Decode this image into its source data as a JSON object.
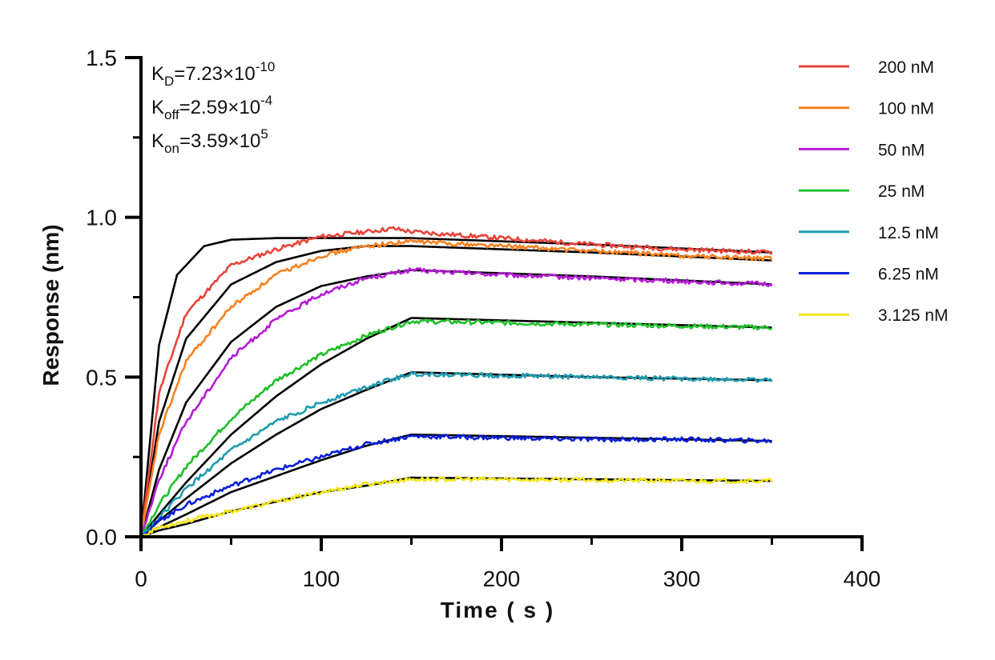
{
  "chart_data": {
    "type": "line",
    "xlabel": "Time ( s )",
    "ylabel": "Response (nm)",
    "xlim": [
      0,
      400
    ],
    "ylim": [
      0,
      1.5
    ],
    "x_ticks": [
      "0",
      "100",
      "200",
      "300",
      "400"
    ],
    "y_ticks": [
      "0.0",
      "0.5",
      "1.0",
      "1.5"
    ],
    "grid": false,
    "legend_position": "top-right",
    "annotations": [
      {
        "name": "K",
        "sub": "D",
        "value": "=7.23×10",
        "sup": "-10"
      },
      {
        "name": "K",
        "sub": "off",
        "value": "=2.59×10",
        "sup": "-4"
      },
      {
        "name": "K",
        "sub": "on",
        "value": "=3.59×10",
        "sup": "5"
      }
    ],
    "association_end_s": 150,
    "experiment_end_s": 350,
    "fit_line_color": "#000000",
    "series": [
      {
        "name": "200 nM",
        "color": "#E8433A",
        "measured": [
          [
            0,
            0
          ],
          [
            10,
            0.45
          ],
          [
            25,
            0.7
          ],
          [
            50,
            0.85
          ],
          [
            75,
            0.9
          ],
          [
            100,
            0.94
          ],
          [
            125,
            0.955
          ],
          [
            140,
            0.965
          ],
          [
            150,
            0.955
          ],
          [
            200,
            0.935
          ],
          [
            250,
            0.915
          ],
          [
            300,
            0.9
          ],
          [
            350,
            0.89
          ]
        ],
        "fit": [
          [
            0,
            0
          ],
          [
            10,
            0.6
          ],
          [
            20,
            0.82
          ],
          [
            35,
            0.91
          ],
          [
            50,
            0.93
          ],
          [
            75,
            0.935
          ],
          [
            150,
            0.935
          ],
          [
            250,
            0.915
          ],
          [
            350,
            0.89
          ]
        ]
      },
      {
        "name": "100 nM",
        "color": "#F58220",
        "measured": [
          [
            0,
            0
          ],
          [
            10,
            0.32
          ],
          [
            25,
            0.55
          ],
          [
            50,
            0.72
          ],
          [
            75,
            0.82
          ],
          [
            100,
            0.88
          ],
          [
            125,
            0.91
          ],
          [
            150,
            0.925
          ],
          [
            200,
            0.91
          ],
          [
            250,
            0.895
          ],
          [
            300,
            0.88
          ],
          [
            350,
            0.87
          ]
        ],
        "fit": [
          [
            0,
            0
          ],
          [
            10,
            0.36
          ],
          [
            25,
            0.62
          ],
          [
            50,
            0.79
          ],
          [
            75,
            0.86
          ],
          [
            100,
            0.895
          ],
          [
            125,
            0.91
          ],
          [
            150,
            0.91
          ],
          [
            250,
            0.89
          ],
          [
            350,
            0.865
          ]
        ]
      },
      {
        "name": "50 nM",
        "color": "#B51CD6",
        "measured": [
          [
            0,
            0
          ],
          [
            10,
            0.18
          ],
          [
            25,
            0.36
          ],
          [
            50,
            0.56
          ],
          [
            75,
            0.68
          ],
          [
            100,
            0.76
          ],
          [
            125,
            0.81
          ],
          [
            150,
            0.835
          ],
          [
            200,
            0.82
          ],
          [
            250,
            0.81
          ],
          [
            300,
            0.8
          ],
          [
            350,
            0.79
          ]
        ],
        "fit": [
          [
            0,
            0
          ],
          [
            10,
            0.21
          ],
          [
            25,
            0.42
          ],
          [
            50,
            0.61
          ],
          [
            75,
            0.72
          ],
          [
            100,
            0.785
          ],
          [
            125,
            0.815
          ],
          [
            150,
            0.835
          ],
          [
            250,
            0.815
          ],
          [
            350,
            0.79
          ]
        ]
      },
      {
        "name": "25 nM",
        "color": "#1FBF2A",
        "measured": [
          [
            0,
            0
          ],
          [
            10,
            0.1
          ],
          [
            25,
            0.22
          ],
          [
            50,
            0.37
          ],
          [
            75,
            0.49
          ],
          [
            100,
            0.57
          ],
          [
            125,
            0.63
          ],
          [
            150,
            0.675
          ],
          [
            200,
            0.67
          ],
          [
            250,
            0.665
          ],
          [
            300,
            0.66
          ],
          [
            350,
            0.655
          ]
        ],
        "fit": [
          [
            0,
            0
          ],
          [
            10,
            0.07
          ],
          [
            25,
            0.17
          ],
          [
            50,
            0.32
          ],
          [
            75,
            0.44
          ],
          [
            100,
            0.54
          ],
          [
            125,
            0.62
          ],
          [
            150,
            0.685
          ],
          [
            250,
            0.67
          ],
          [
            350,
            0.655
          ]
        ]
      },
      {
        "name": "12.5 nM",
        "color": "#1E9BAF",
        "measured": [
          [
            0,
            0
          ],
          [
            10,
            0.06
          ],
          [
            25,
            0.15
          ],
          [
            50,
            0.27
          ],
          [
            75,
            0.36
          ],
          [
            100,
            0.42
          ],
          [
            125,
            0.47
          ],
          [
            150,
            0.51
          ],
          [
            200,
            0.505
          ],
          [
            250,
            0.5
          ],
          [
            300,
            0.495
          ],
          [
            350,
            0.49
          ]
        ],
        "fit": [
          [
            0,
            0
          ],
          [
            10,
            0.05
          ],
          [
            25,
            0.12
          ],
          [
            50,
            0.23
          ],
          [
            75,
            0.32
          ],
          [
            100,
            0.4
          ],
          [
            125,
            0.46
          ],
          [
            150,
            0.515
          ],
          [
            250,
            0.5
          ],
          [
            350,
            0.49
          ]
        ]
      },
      {
        "name": "6.25 nM",
        "color": "#0A1FD8",
        "measured": [
          [
            0,
            0
          ],
          [
            10,
            0.05
          ],
          [
            25,
            0.1
          ],
          [
            50,
            0.16
          ],
          [
            75,
            0.21
          ],
          [
            100,
            0.25
          ],
          [
            125,
            0.29
          ],
          [
            150,
            0.315
          ],
          [
            200,
            0.31
          ],
          [
            250,
            0.305
          ],
          [
            300,
            0.305
          ],
          [
            350,
            0.3
          ]
        ],
        "fit": [
          [
            0,
            0
          ],
          [
            10,
            0.03
          ],
          [
            25,
            0.07
          ],
          [
            50,
            0.14
          ],
          [
            75,
            0.19
          ],
          [
            100,
            0.24
          ],
          [
            125,
            0.285
          ],
          [
            150,
            0.32
          ],
          [
            250,
            0.31
          ],
          [
            350,
            0.3
          ]
        ]
      },
      {
        "name": "3.125 nM",
        "color": "#F2E61B",
        "measured": [
          [
            0,
            0
          ],
          [
            10,
            0.03
          ],
          [
            25,
            0.05
          ],
          [
            50,
            0.08
          ],
          [
            75,
            0.11
          ],
          [
            100,
            0.14
          ],
          [
            125,
            0.165
          ],
          [
            150,
            0.18
          ],
          [
            200,
            0.18
          ],
          [
            250,
            0.178
          ],
          [
            300,
            0.175
          ],
          [
            350,
            0.175
          ]
        ],
        "fit": [
          [
            0,
            0
          ],
          [
            10,
            0.02
          ],
          [
            25,
            0.04
          ],
          [
            50,
            0.08
          ],
          [
            75,
            0.11
          ],
          [
            100,
            0.14
          ],
          [
            125,
            0.16
          ],
          [
            150,
            0.185
          ],
          [
            250,
            0.18
          ],
          [
            350,
            0.175
          ]
        ]
      }
    ]
  }
}
